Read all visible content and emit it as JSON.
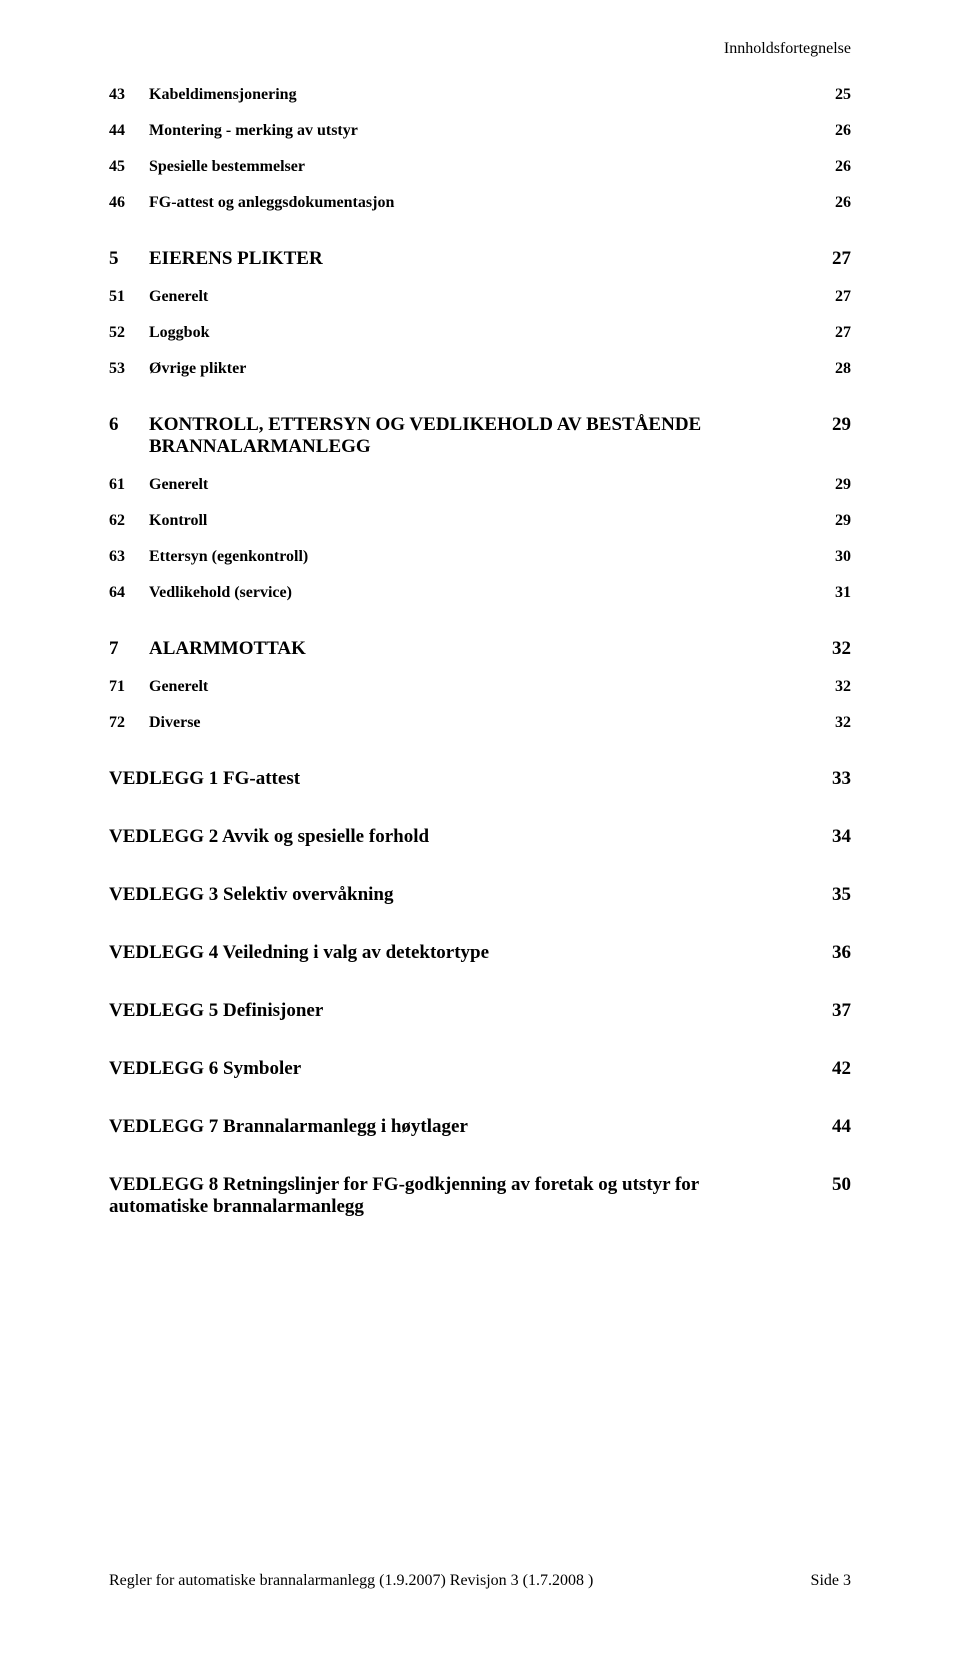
{
  "header_right": "Innholdsfortegnelse",
  "toc": [
    {
      "cls": "lvl2",
      "num": "43",
      "title": "Kabeldimensjonering",
      "page": "25",
      "first": true
    },
    {
      "cls": "lvl2",
      "num": "44",
      "title": "Montering - merking av utstyr",
      "page": "26"
    },
    {
      "cls": "lvl2",
      "num": "45",
      "title": "Spesielle bestemmelser",
      "page": "26"
    },
    {
      "cls": "lvl2",
      "num": "46",
      "title": "FG-attest og anleggsdokumentasjon",
      "page": "26"
    },
    {
      "cls": "lvl1",
      "num": "5",
      "title": "EIERENS PLIKTER",
      "page": "27"
    },
    {
      "cls": "lvl2",
      "num": "51",
      "title": "Generelt",
      "page": "27"
    },
    {
      "cls": "lvl2",
      "num": "52",
      "title": "Loggbok",
      "page": "27"
    },
    {
      "cls": "lvl2",
      "num": "53",
      "title": "Øvrige plikter",
      "page": "28"
    },
    {
      "cls": "lvl1",
      "num": "6",
      "title": "KONTROLL, ETTERSYN OG VEDLIKEHOLD AV BESTÅENDE BRANNALARMANLEGG",
      "page": "29"
    },
    {
      "cls": "lvl2",
      "num": "61",
      "title": "Generelt",
      "page": "29"
    },
    {
      "cls": "lvl2",
      "num": "62",
      "title": "Kontroll",
      "page": "29"
    },
    {
      "cls": "lvl2",
      "num": "63",
      "title": "Ettersyn (egenkontroll)",
      "page": "30"
    },
    {
      "cls": "lvl2",
      "num": "64",
      "title": "Vedlikehold (service)",
      "page": "31"
    },
    {
      "cls": "lvl1",
      "num": "7",
      "title": "ALARMMOTTAK",
      "page": "32"
    },
    {
      "cls": "lvl2",
      "num": "71",
      "title": "Generelt",
      "page": "32"
    },
    {
      "cls": "lvl2",
      "num": "72",
      "title": "Diverse",
      "page": "32"
    },
    {
      "cls": "ved",
      "title": "VEDLEGG 1 FG-attest",
      "page": "33"
    },
    {
      "cls": "ved",
      "title": "VEDLEGG 2 Avvik og spesielle forhold",
      "page": "34"
    },
    {
      "cls": "ved",
      "title": "VEDLEGG 3 Selektiv overvåkning",
      "page": "35"
    },
    {
      "cls": "ved",
      "title": "VEDLEGG 4 Veiledning i valg av detektortype",
      "page": "36"
    },
    {
      "cls": "ved",
      "title": "VEDLEGG 5 Definisjoner",
      "page": "37"
    },
    {
      "cls": "ved",
      "title": "VEDLEGG 6 Symboler",
      "page": "42"
    },
    {
      "cls": "ved",
      "title": "VEDLEGG 7 Brannalarmanlegg i høytlager",
      "page": "44"
    },
    {
      "cls": "ved",
      "title": "VEDLEGG 8 Retningslinjer for FG-godkjenning av foretak og utstyr for automatiske brannalarmanlegg",
      "page": "50"
    }
  ],
  "footer_left": "Regler for automatiske brannalarmanlegg (1.9.2007) Revisjon 3 (1.7.2008 )",
  "footer_right": "Side 3"
}
